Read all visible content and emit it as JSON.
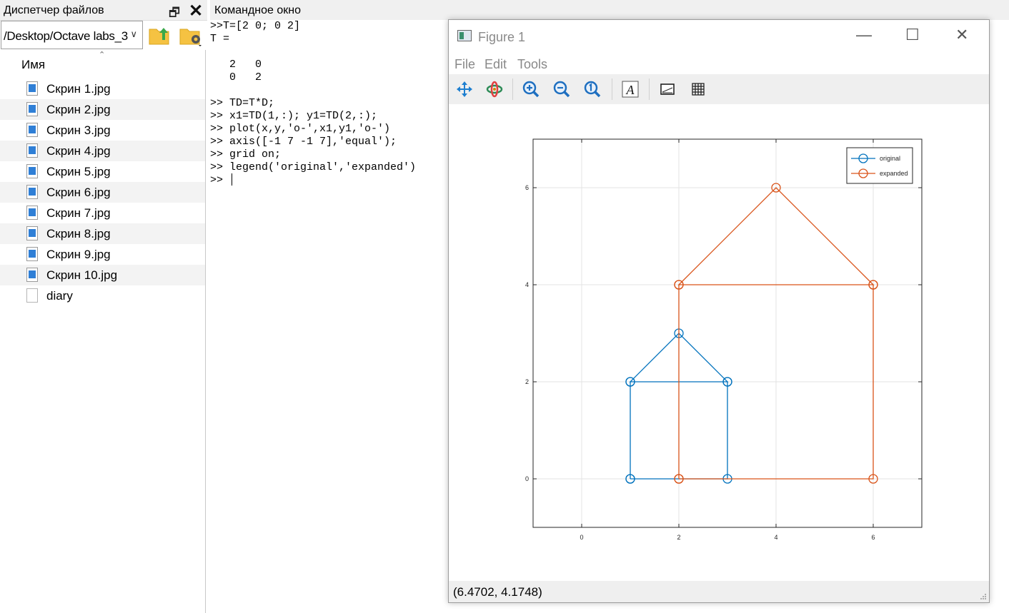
{
  "file_manager": {
    "title": "Диспетчер файлов",
    "path": "/Desktop/Octave labs_3",
    "column_header": "Имя",
    "files": [
      {
        "name": "Скрин 1.jpg",
        "type": "image"
      },
      {
        "name": "Скрин 2.jpg",
        "type": "image"
      },
      {
        "name": "Скрин 3.jpg",
        "type": "image"
      },
      {
        "name": "Скрин 4.jpg",
        "type": "image"
      },
      {
        "name": "Скрин 5.jpg",
        "type": "image"
      },
      {
        "name": "Скрин 6.jpg",
        "type": "image"
      },
      {
        "name": "Скрин 7.jpg",
        "type": "image"
      },
      {
        "name": "Скрин 8.jpg",
        "type": "image"
      },
      {
        "name": "Скрин 9.jpg",
        "type": "image"
      },
      {
        "name": "Скрин 10.jpg",
        "type": "image"
      },
      {
        "name": "diary",
        "type": "document"
      }
    ]
  },
  "command_window": {
    "title": "Командное окно",
    "lines": [
      ">>T=[2 0; 0 2]",
      "T =",
      "",
      "   2   0",
      "   0   2",
      "",
      ">> TD=T*D;",
      ">> x1=TD(1,:); y1=TD(2,:);",
      ">> plot(x,y,'o-',x1,y1,'o-')",
      ">> axis([-1 7 -1 7],'equal');",
      ">> grid on;",
      ">> legend('original','expanded')",
      ">> "
    ]
  },
  "figure": {
    "title": "Figure 1",
    "menu": [
      "File",
      "Edit",
      "Tools"
    ],
    "toolbar": [
      "pan-icon",
      "rotate-icon",
      "zoom-in-icon",
      "zoom-out-icon",
      "zoom-reset-icon",
      "text-icon",
      "axes-icon",
      "grid-icon"
    ],
    "status": "(6.4702, 4.1748)"
  },
  "chart_data": {
    "type": "line",
    "title": "",
    "xlabel": "",
    "ylabel": "",
    "xlim": [
      -1,
      7
    ],
    "ylim": [
      -1,
      7
    ],
    "xticks": [
      0,
      2,
      4,
      6
    ],
    "yticks": [
      0,
      2,
      4,
      6
    ],
    "grid": true,
    "legend": "top-right",
    "markers": "circle",
    "series": [
      {
        "name": "original",
        "color": "#0072bd",
        "x": [
          1,
          3,
          3,
          1,
          2,
          3,
          1,
          1
        ],
        "y": [
          0,
          0,
          2,
          2,
          3,
          2,
          2,
          0
        ]
      },
      {
        "name": "expanded",
        "color": "#d95319",
        "x": [
          2,
          6,
          6,
          2,
          4,
          6,
          2,
          2
        ],
        "y": [
          0,
          0,
          4,
          4,
          6,
          4,
          4,
          0
        ]
      }
    ]
  }
}
